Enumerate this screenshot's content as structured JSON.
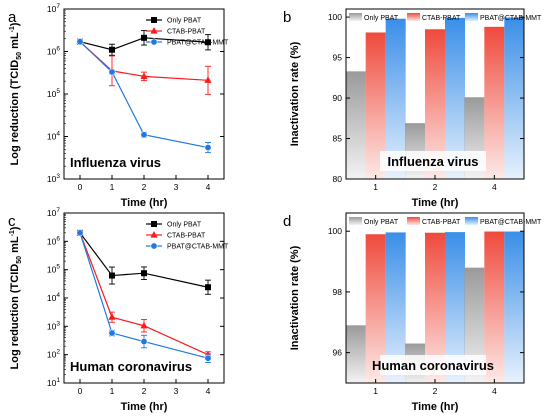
{
  "chart_data": [
    {
      "panel": "a",
      "type": "line",
      "log_y": true,
      "x": [
        0,
        1,
        2,
        4
      ],
      "xticks": [
        "0",
        "1",
        "2",
        "3",
        "4"
      ],
      "xlim": [
        -0.5,
        4.5
      ],
      "ylim": [
        1000,
        10000000
      ],
      "yticks": [
        "10^3",
        "10^4",
        "10^5",
        "10^6",
        "10^7"
      ],
      "xlabel": "Time (hr)",
      "ylabel": "Log reduction (TCID50 mL-1)",
      "annotation": "Influenza virus",
      "series": [
        {
          "name": "Only PBAT",
          "color": "#000000",
          "marker": "square",
          "values": [
            1700000,
            1100000,
            2100000,
            1650000
          ],
          "errors": [
            0.05,
            0.13,
            0.17,
            0.18
          ]
        },
        {
          "name": "CTAB-PBAT",
          "color": "#ff1a1a",
          "marker": "triangle",
          "values": [
            1700000,
            350000,
            260000,
            210000
          ],
          "errors": [
            0.05,
            0.35,
            0.1,
            0.33
          ]
        },
        {
          "name": "PBAT@CTAB-MMT",
          "color": "#1e78e6",
          "marker": "circle",
          "values": [
            1700000,
            330000,
            11000,
            5500
          ],
          "errors": [
            0.05,
            0.05,
            0.06,
            0.12
          ]
        }
      ]
    },
    {
      "panel": "b",
      "type": "bar",
      "categories": [
        "1",
        "2",
        "4"
      ],
      "ylim": [
        80,
        101
      ],
      "yticks": [
        80,
        85,
        90,
        95,
        100
      ],
      "xlabel": "Time (hr)",
      "ylabel": "Inactivation rate (%)",
      "annotation": "Influenza virus",
      "series": [
        {
          "name": "Only PBAT",
          "color": "#9a9a9a",
          "values": [
            93.3,
            86.9,
            90.1
          ]
        },
        {
          "name": "CTAB-PBAT",
          "color": "#ef4a3c",
          "values": [
            98.1,
            98.5,
            98.8
          ]
        },
        {
          "name": "PBAT@CTAB-MMT",
          "color": "#3a8ee8",
          "values": [
            99.8,
            99.9,
            99.95
          ]
        }
      ]
    },
    {
      "panel": "c",
      "type": "line",
      "log_y": true,
      "x": [
        0,
        1,
        2,
        4
      ],
      "xticks": [
        "0",
        "1",
        "2",
        "3",
        "4"
      ],
      "xlim": [
        -0.5,
        4.5
      ],
      "ylim": [
        10,
        10000000
      ],
      "yticks": [
        "10^1",
        "10^2",
        "10^3",
        "10^4",
        "10^5",
        "10^6",
        "10^7"
      ],
      "xlabel": "Time (hr)",
      "ylabel": "Log reduction (TCID50 mL-1)",
      "annotation": "Human coronavirus",
      "series": [
        {
          "name": "Only PBAT",
          "color": "#000000",
          "marker": "square",
          "values": [
            2000000,
            62000,
            75000,
            24000
          ],
          "errors": [
            0.05,
            0.3,
            0.22,
            0.25
          ]
        },
        {
          "name": "CTAB-PBAT",
          "color": "#ff1a1a",
          "marker": "triangle",
          "values": [
            2000000,
            2100,
            1050,
            100
          ],
          "errors": [
            0.05,
            0.18,
            0.22,
            0.1
          ]
        },
        {
          "name": "PBAT@CTAB-MMT",
          "color": "#1e78e6",
          "marker": "circle",
          "values": [
            2000000,
            580,
            290,
            75
          ],
          "errors": [
            0.05,
            0.1,
            0.22,
            0.15
          ]
        }
      ]
    },
    {
      "panel": "d",
      "type": "bar",
      "categories": [
        "1",
        "2",
        "4"
      ],
      "ylim": [
        95,
        100.6
      ],
      "yticks": [
        96,
        98,
        100
      ],
      "xlabel": "Time (hr)",
      "ylabel": "Inactivation rate (%)",
      "annotation": "Human coronavirus",
      "series": [
        {
          "name": "Only PBAT",
          "color": "#9a9a9a",
          "values": [
            96.9,
            96.3,
            98.8
          ]
        },
        {
          "name": "CTAB-PBAT",
          "color": "#ef4a3c",
          "values": [
            99.9,
            99.95,
            99.99
          ]
        },
        {
          "name": "PBAT@CTAB-MMT",
          "color": "#3a8ee8",
          "values": [
            99.96,
            99.97,
            99.99
          ]
        }
      ]
    }
  ]
}
